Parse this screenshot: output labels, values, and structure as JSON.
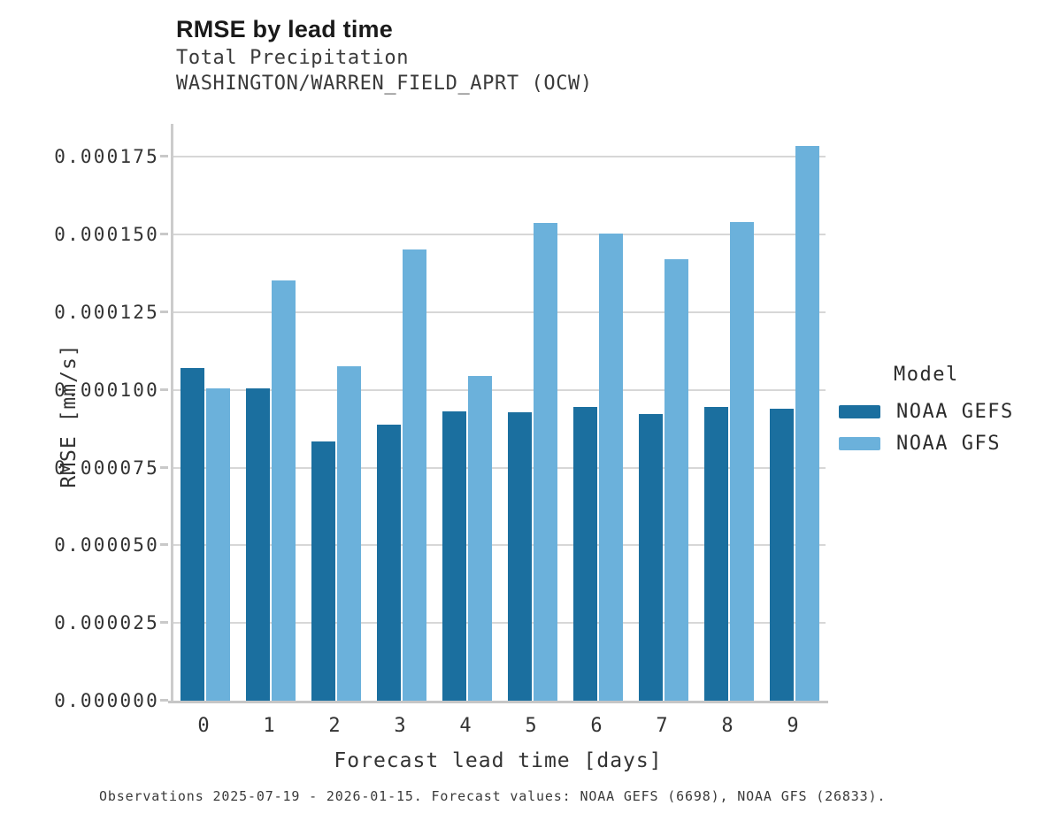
{
  "header": {
    "title": "RMSE by lead time",
    "subtitle_line1": "Total Precipitation",
    "subtitle_line2": "WASHINGTON/WARREN_FIELD_APRT (OCW)"
  },
  "chart_data": {
    "type": "bar",
    "title": "RMSE by lead time",
    "subtitle": [
      "Total Precipitation",
      "WASHINGTON/WARREN_FIELD_APRT (OCW)"
    ],
    "categories": [
      "0",
      "1",
      "2",
      "3",
      "4",
      "5",
      "6",
      "7",
      "8",
      "9"
    ],
    "series": [
      {
        "name": "NOAA GEFS",
        "color": "#1B6F9F",
        "values": [
          0.000107,
          0.0001005,
          8.33e-05,
          8.88e-05,
          9.31e-05,
          9.27e-05,
          9.45e-05,
          9.23e-05,
          9.46e-05,
          9.4e-05
        ]
      },
      {
        "name": "NOAA GFS",
        "color": "#6BB1DB",
        "values": [
          0.0001005,
          0.0001353,
          0.0001076,
          0.0001453,
          0.0001044,
          0.0001537,
          0.0001504,
          0.000142,
          0.0001539,
          0.0001786
        ]
      }
    ],
    "xlabel": "Forecast lead time [days]",
    "ylabel": "RMSE [mm/s]",
    "ylim": [
      0,
      0.0001856
    ],
    "ytick_values": [
      0,
      2.5e-05,
      5e-05,
      7.5e-05,
      0.0001,
      0.000125,
      0.00015,
      0.000175
    ],
    "ytick_labels": [
      "0.000000",
      "0.000025",
      "0.000050",
      "0.000075",
      "0.000100",
      "0.000125",
      "0.000150",
      "0.000175"
    ],
    "grid": true,
    "legend": {
      "title": "Model",
      "position": "right",
      "entries": [
        "NOAA GEFS",
        "NOAA GFS"
      ]
    }
  },
  "footer": {
    "note": "Observations 2025-07-19 - 2026-01-15. Forecast values: NOAA GEFS (6698), NOAA GFS (26833)."
  },
  "colors": {
    "series_dark": "#1B6F9F",
    "series_light": "#6BB1DB",
    "gridline": "#D7D7D7",
    "axis": "#C9C9C9",
    "text": "#333333"
  }
}
